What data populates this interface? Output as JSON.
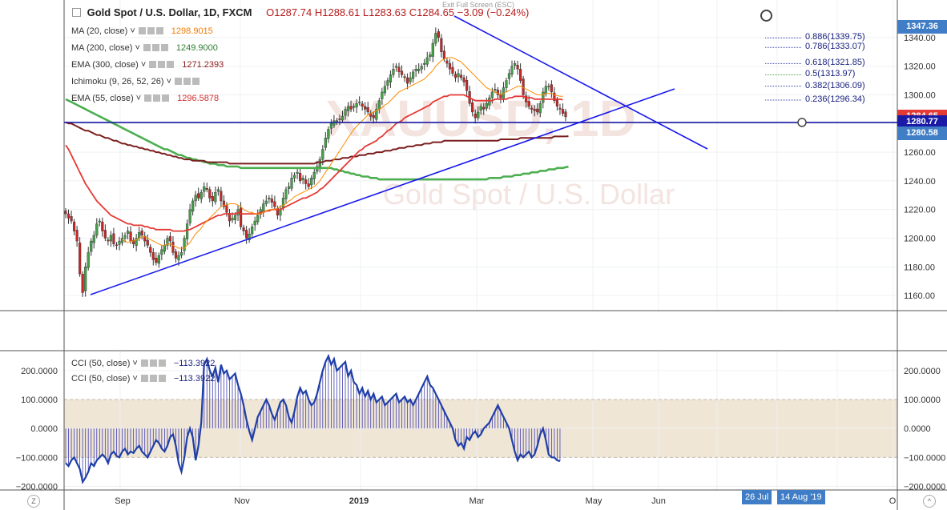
{
  "header": {
    "symbol": "Gold Spot / U.S. Dollar, 1D, FXCM",
    "open": "O1287.74",
    "high": "H1288.61",
    "low": "L1283.63",
    "close": "C1284.65",
    "change": "−3.09 (−0.24%)",
    "exit_fullscreen": "Exit Full Screen (ESC)"
  },
  "indicators": [
    {
      "label": "MA (20, close)",
      "value": "1298.9015",
      "color": "#f57c00"
    },
    {
      "label": "MA (200, close)",
      "value": "1249.9000",
      "color": "#2e7d32"
    },
    {
      "label": "EMA (300, close)",
      "value": "1271.2393",
      "color": "#8b1a1a"
    },
    {
      "label": "Ichimoku (9, 26, 52, 26)",
      "value": "",
      "color": "#555555"
    },
    {
      "label": "EMA (55, close)",
      "value": "1296.5878",
      "color": "#d32f2f"
    }
  ],
  "cci_indicators": [
    {
      "label": "CCI (50, close)",
      "value": "−113.3922"
    },
    {
      "label": "CCI (50, close)",
      "value": "−113.3922"
    }
  ],
  "fib_levels": [
    {
      "label": "0.886(1339.75)",
      "price": 1339.75
    },
    {
      "label": "0.786(1333.07)",
      "price": 1333.07
    },
    {
      "label": "0.618(1321.85)",
      "price": 1321.85
    },
    {
      "label": "0.5(1313.97)",
      "price": 1313.97
    },
    {
      "label": "0.382(1306.09)",
      "price": 1306.09
    },
    {
      "label": "0.236(1296.34)",
      "price": 1296.34
    }
  ],
  "price_labels": [
    {
      "text": "1347.36",
      "price": 1347.36,
      "color": "#3f7dc6"
    },
    {
      "text": "1284.65",
      "price": 1284.65,
      "color": "#e53935"
    },
    {
      "text": "1280.77",
      "price": 1280.77,
      "color": "#1a1aa6"
    },
    {
      "text": "1280.58",
      "price": 1280.58,
      "color": "#3f7dc6"
    }
  ],
  "date_labels": [
    {
      "text": "26 Jul"
    },
    {
      "text": "14 Aug '19"
    }
  ],
  "chart_data": {
    "type": "candlestick",
    "price_axis": {
      "ticks": [
        1160,
        1180,
        1200,
        1220,
        1240,
        1260,
        1280,
        1300,
        1320,
        1340
      ],
      "tick_labels": [
        "1160.00",
        "1180.00",
        "1200.00",
        "1220.00",
        "1240.00",
        "1260.00",
        "1280.00",
        "1300.00",
        "1320.00",
        "1340.00"
      ],
      "range": [
        1150,
        1350
      ]
    },
    "cci_axis": {
      "ticks": [
        -200,
        -100,
        0,
        100,
        200
      ],
      "tick_labels": [
        "−200.0000",
        "−100.0000",
        "0.0000",
        "100.0000",
        "200.0000"
      ],
      "range": [
        -210,
        255
      ],
      "band": [
        -100,
        100
      ]
    },
    "x_axis": {
      "tick_labels": [
        "Sep",
        "Nov",
        "2019",
        "Mar",
        "May",
        "Jun",
        "O"
      ]
    },
    "horizontal_line": 1280.77,
    "close_series": [
      1217,
      1214,
      1212,
      1205,
      1198,
      1175,
      1162,
      1180,
      1190,
      1198,
      1202,
      1210,
      1212,
      1205,
      1200,
      1198,
      1202,
      1196,
      1195,
      1198,
      1200,
      1202,
      1205,
      1198,
      1196,
      1200,
      1204,
      1202,
      1198,
      1195,
      1190,
      1185,
      1183,
      1188,
      1192,
      1195,
      1200,
      1198,
      1190,
      1186,
      1188,
      1190,
      1200,
      1210,
      1220,
      1226,
      1230,
      1228,
      1232,
      1236,
      1234,
      1228,
      1226,
      1232,
      1234,
      1226,
      1222,
      1218,
      1212,
      1214,
      1216,
      1220,
      1208,
      1205,
      1200,
      1203,
      1208,
      1212,
      1216,
      1220,
      1224,
      1226,
      1228,
      1225,
      1222,
      1216,
      1220,
      1228,
      1234,
      1236,
      1242,
      1244,
      1246,
      1240,
      1242,
      1238,
      1236,
      1242,
      1246,
      1250,
      1255,
      1262,
      1270,
      1276,
      1280,
      1282,
      1282,
      1283,
      1285,
      1290,
      1292,
      1290,
      1292,
      1294,
      1295,
      1292,
      1290,
      1288,
      1285,
      1284,
      1290,
      1296,
      1302,
      1306,
      1310,
      1314,
      1318,
      1320,
      1316,
      1314,
      1312,
      1308,
      1312,
      1316,
      1318,
      1318,
      1320,
      1322,
      1326,
      1328,
      1336,
      1343,
      1340,
      1330,
      1325,
      1322,
      1318,
      1315,
      1312,
      1315,
      1312,
      1309,
      1303,
      1294,
      1288,
      1284,
      1288,
      1292,
      1290,
      1294,
      1298,
      1302,
      1304,
      1300,
      1298,
      1305,
      1310,
      1315,
      1320,
      1322,
      1318,
      1310,
      1300,
      1295,
      1292,
      1290,
      1289,
      1288,
      1294,
      1302,
      1306,
      1306,
      1302,
      1296,
      1292,
      1290,
      1287,
      1284.65
    ],
    "ma20": [
      null,
      null,
      null,
      null,
      null,
      null,
      null,
      null,
      null,
      null,
      null,
      null,
      null,
      null,
      null,
      null,
      null,
      null,
      null,
      null,
      1199,
      1198,
      1197,
      1198,
      1198,
      1199,
      1200,
      1201,
      1201,
      1200,
      1199,
      1198,
      1197,
      1196,
      1195,
      1195,
      1196,
      1196,
      1195,
      1194,
      1193,
      1193,
      1193,
      1195,
      1197,
      1200,
      1203,
      1205,
      1207,
      1210,
      1212,
      1214,
      1216,
      1218,
      1220,
      1222,
      1223,
      1223,
      1224,
      1224,
      1224,
      1223,
      1222,
      1220,
      1219,
      1218,
      1218,
      1217,
      1217,
      1217,
      1218,
      1219,
      1220,
      1220,
      1220,
      1221,
      1222,
      1223,
      1224,
      1226,
      1227,
      1229,
      1230,
      1231,
      1232,
      1233,
      1234,
      1235,
      1236,
      1238,
      1240,
      1243,
      1246,
      1249,
      1252,
      1255,
      1258,
      1261,
      1264,
      1267,
      1270,
      1273,
      1276,
      1278,
      1280,
      1282,
      1284,
      1286,
      1287,
      1288,
      1289,
      1290,
      1291,
      1293,
      1294,
      1296,
      1298,
      1300,
      1302,
      1303,
      1304,
      1305,
      1306,
      1307,
      1308,
      1309,
      1310,
      1311,
      1313,
      1315,
      1317,
      1320,
      1322,
      1324,
      1325,
      1326,
      1326,
      1326,
      1325,
      1324,
      1323,
      1321,
      1319,
      1317,
      1315,
      1313,
      1311,
      1309,
      1307,
      1305,
      1304,
      1303,
      1302,
      1301,
      1300,
      1301,
      1302,
      1303,
      1304,
      1305,
      1306,
      1306,
      1305,
      1304,
      1303,
      1302,
      1301,
      1300,
      1300,
      1300,
      1301,
      1301,
      1301,
      1300,
      1299.5,
      1299,
      1299
    ],
    "ema55": [
      1265,
      1262,
      1258,
      1254,
      1250,
      1246,
      1242,
      1238,
      1235,
      1232,
      1229,
      1226,
      1224,
      1222,
      1220,
      1218,
      1216,
      1215,
      1214,
      1213,
      1212,
      1211,
      1210,
      1210,
      1209,
      1209,
      1209,
      1209,
      1208,
      1208,
      1207,
      1207,
      1206,
      1206,
      1206,
      1206,
      1206,
      1206,
      1205,
      1205,
      1205,
      1205,
      1205,
      1206,
      1206,
      1207,
      1208,
      1209,
      1210,
      1211,
      1212,
      1213,
      1214,
      1215,
      1216,
      1216,
      1217,
      1217,
      1217,
      1217,
      1217,
      1218,
      1217,
      1217,
      1217,
      1217,
      1217,
      1217,
      1217,
      1218,
      1218,
      1219,
      1219,
      1220,
      1220,
      1220,
      1220,
      1221,
      1222,
      1223,
      1224,
      1225,
      1226,
      1227,
      1228,
      1228,
      1229,
      1230,
      1231,
      1232,
      1234,
      1235,
      1237,
      1239,
      1241,
      1243,
      1245,
      1247,
      1249,
      1251,
      1253,
      1255,
      1257,
      1259,
      1261,
      1262,
      1264,
      1265,
      1266,
      1267,
      1268,
      1270,
      1271,
      1273,
      1275,
      1276,
      1278,
      1280,
      1281,
      1282,
      1284,
      1285,
      1286,
      1287,
      1288,
      1289,
      1290,
      1291,
      1292,
      1293,
      1295,
      1296,
      1297,
      1298,
      1299,
      1299,
      1300,
      1300,
      1300,
      1300,
      1300,
      1300,
      1299,
      1298,
      1297,
      1296,
      1296,
      1296,
      1296,
      1296,
      1296,
      1296,
      1297,
      1297,
      1297,
      1297,
      1297,
      1298,
      1298,
      1299,
      1299,
      1299,
      1299,
      1298,
      1298,
      1298,
      1297,
      1297,
      1297,
      1297,
      1297,
      1297,
      1297,
      1297,
      1297,
      1297,
      1296.6
    ],
    "ema300": [
      1281,
      1280,
      1280,
      1279,
      1278,
      1277,
      1276,
      1275,
      1275,
      1274,
      1273,
      1272,
      1272,
      1271,
      1270,
      1270,
      1269,
      1268,
      1268,
      1267,
      1266,
      1266,
      1265,
      1265,
      1264,
      1264,
      1263,
      1263,
      1262,
      1262,
      1261,
      1261,
      1260,
      1260,
      1259,
      1259,
      1258,
      1258,
      1257,
      1257,
      1256,
      1256,
      1255,
      1255,
      1255,
      1254,
      1254,
      1254,
      1254,
      1254,
      1253,
      1253,
      1253,
      1253,
      1253,
      1253,
      1253,
      1253,
      1252,
      1252,
      1252,
      1252,
      1252,
      1252,
      1252,
      1252,
      1252,
      1252,
      1252,
      1252,
      1252,
      1252,
      1252,
      1252,
      1252,
      1252,
      1252,
      1252,
      1252,
      1252,
      1252,
      1252,
      1252,
      1252,
      1252,
      1252,
      1252,
      1252,
      1252,
      1253,
      1253,
      1253,
      1254,
      1254,
      1254,
      1255,
      1255,
      1255,
      1256,
      1256,
      1256,
      1257,
      1257,
      1257,
      1258,
      1258,
      1258,
      1259,
      1259,
      1259,
      1260,
      1260,
      1260,
      1261,
      1261,
      1261,
      1262,
      1262,
      1263,
      1263,
      1263,
      1264,
      1264,
      1264,
      1265,
      1265,
      1265,
      1266,
      1266,
      1266,
      1267,
      1267,
      1267,
      1267,
      1268,
      1268,
      1268,
      1268,
      1268,
      1268,
      1268,
      1268,
      1268,
      1268,
      1268,
      1268,
      1268,
      1268,
      1268,
      1268,
      1268,
      1268,
      1268,
      1268,
      1269,
      1269,
      1269,
      1269,
      1269,
      1269,
      1269,
      1270,
      1270,
      1270,
      1270,
      1270,
      1270,
      1270,
      1270,
      1270,
      1270,
      1270,
      1270,
      1271,
      1271,
      1271,
      1271,
      1271,
      1271.2
    ],
    "ma200": [
      1297,
      1296,
      1295,
      1294,
      1293,
      1292,
      1291,
      1290,
      1289,
      1288,
      1287,
      1286,
      1285,
      1284,
      1283,
      1282,
      1281,
      1280,
      1279,
      1278,
      1277,
      1276,
      1275,
      1274,
      1273,
      1272,
      1271,
      1270,
      1269,
      1268,
      1267,
      1266,
      1265,
      1264,
      1263,
      1262,
      1262,
      1261,
      1260,
      1259,
      1258,
      1258,
      1257,
      1256,
      1256,
      1255,
      1255,
      1254,
      1254,
      1253,
      1253,
      1252,
      1252,
      1252,
      1251,
      1251,
      1251,
      1250,
      1250,
      1250,
      1250,
      1250,
      1249,
      1249,
      1249,
      1249,
      1249,
      1249,
      1249,
      1249,
      1249,
      1249,
      1249,
      1249,
      1249,
      1249,
      1249,
      1249,
      1249,
      1249,
      1249,
      1249,
      1249,
      1249,
      1249,
      1249,
      1249,
      1249,
      1249,
      1249,
      1249,
      1249,
      1249,
      1249,
      1249,
      1248,
      1248,
      1247,
      1247,
      1246,
      1246,
      1245,
      1245,
      1244,
      1244,
      1243,
      1243,
      1243,
      1242,
      1242,
      1242,
      1241,
      1241,
      1241,
      1241,
      1241,
      1241,
      1241,
      1241,
      1241,
      1241,
      1241,
      1241,
      1241,
      1241,
      1241,
      1241,
      1241,
      1241,
      1241,
      1241,
      1241,
      1241,
      1241,
      1241,
      1241,
      1241,
      1241,
      1241,
      1241,
      1241,
      1241,
      1241,
      1241,
      1241,
      1241,
      1241,
      1241,
      1241,
      1241,
      1242,
      1242,
      1242,
      1242,
      1242,
      1243,
      1243,
      1243,
      1243,
      1244,
      1244,
      1244,
      1245,
      1245,
      1245,
      1246,
      1246,
      1246,
      1247,
      1247,
      1247,
      1248,
      1248,
      1248,
      1249,
      1249,
      1249,
      1249.5,
      1249.9
    ],
    "cci_values": [
      -120,
      -130,
      -110,
      -100,
      -120,
      -140,
      -185,
      -170,
      -150,
      -120,
      -130,
      -110,
      -100,
      -90,
      -100,
      -120,
      -90,
      -80,
      -95,
      -100,
      -80,
      -70,
      -90,
      -80,
      -85,
      -70,
      -60,
      -80,
      -90,
      -100,
      -80,
      -60,
      -40,
      -50,
      -70,
      -80,
      -60,
      -30,
      -20,
      -60,
      -120,
      -150,
      -100,
      -30,
      0,
      -30,
      -110,
      -60,
      20,
      220,
      240,
      200,
      180,
      210,
      160,
      220,
      190,
      200,
      170,
      180,
      190,
      150,
      120,
      80,
      30,
      -10,
      -40,
      0,
      40,
      60,
      80,
      100,
      80,
      50,
      30,
      60,
      90,
      100,
      80,
      40,
      20,
      60,
      110,
      140,
      120,
      130,
      100,
      80,
      90,
      120,
      160,
      200,
      230,
      250,
      220,
      240,
      200,
      210,
      220,
      230,
      180,
      200,
      160,
      150,
      120,
      140,
      110,
      130,
      100,
      120,
      90,
      100,
      110,
      80,
      90,
      100,
      110,
      120,
      90,
      100,
      110,
      90,
      100,
      80,
      100,
      120,
      140,
      160,
      180,
      150,
      140,
      120,
      100,
      80,
      60,
      40,
      20,
      0,
      -40,
      -60,
      -50,
      -70,
      -30,
      -40,
      -20,
      -10,
      -30,
      -20,
      0,
      10,
      20,
      40,
      60,
      80,
      60,
      40,
      20,
      0,
      -40,
      -80,
      -110,
      -90,
      -100,
      -90,
      -80,
      -100,
      -90,
      -60,
      -20,
      0,
      -40,
      -90,
      -100,
      -100,
      -110,
      -113.4
    ]
  }
}
